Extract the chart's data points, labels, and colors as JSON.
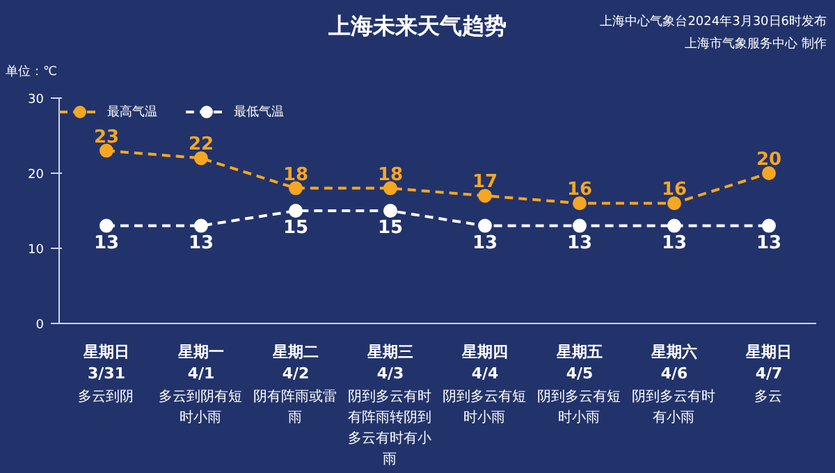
{
  "chart_data": {
    "type": "line",
    "title": "上海未来天气趋势",
    "ylabel": "单位：℃",
    "categories": [
      "星期日\n3/31",
      "星期一\n4/1",
      "星期二\n4/2",
      "星期三\n4/3",
      "星期四\n4/4",
      "星期五\n4/5",
      "星期六\n4/6",
      "星期日\n4/7"
    ],
    "series": [
      {
        "name": "最高气温",
        "color": "#f5a623",
        "values": [
          23,
          22,
          18,
          18,
          17,
          16,
          16,
          20
        ]
      },
      {
        "name": "最低气温",
        "color": "#ffffff",
        "values": [
          13,
          13,
          15,
          15,
          13,
          13,
          13,
          13
        ]
      }
    ],
    "ylim": [
      0,
      30
    ],
    "yticks": [
      0,
      10,
      20,
      30
    ],
    "grid": false,
    "legend": "top left",
    "marker": "circle",
    "line_style": "dashed",
    "data_labels": true,
    "annotations": [
      "多云到阴",
      "多云到阴有短时小雨",
      "阴有阵雨或雷雨",
      "阴到多云有时有阵雨转阴到多云有时有小雨",
      "阴到多云有短时小雨",
      "阴到多云有短时小雨",
      "阴到多云有时有小雨",
      "多云",
      "上海中心气象台2024年3月30日6时发布",
      "上海市气象服务中心 制作"
    ]
  }
}
